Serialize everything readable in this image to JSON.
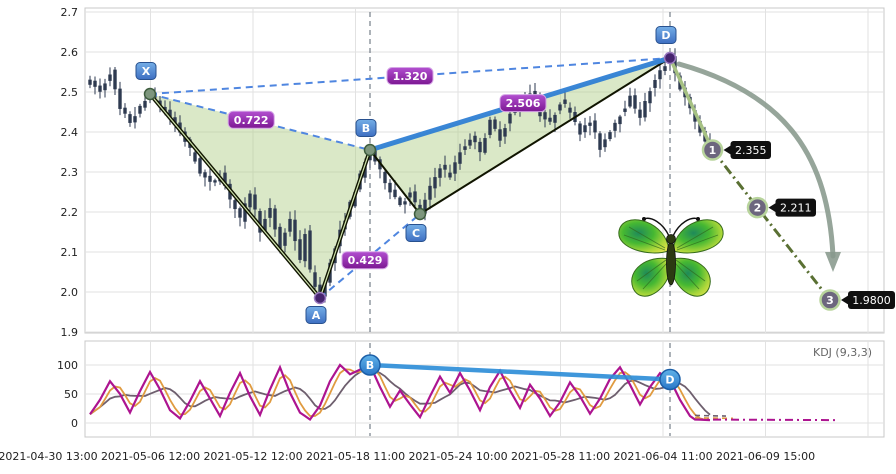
{
  "chart_data": {
    "type": "candlestick",
    "title": "",
    "main_panel": {
      "y_axis": {
        "ticks": [
          "2.7",
          "2.6",
          "2.5",
          "2.4",
          "2.3",
          "2.2",
          "2.1",
          "2.0",
          "1.9"
        ],
        "range": [
          1.9,
          2.7
        ]
      },
      "x_axis": {
        "ticks": [
          "2021-04-30 13:00",
          "2021-05-06 12:00",
          "2021-05-12 12:00",
          "2021-05-18 11:00",
          "2021-05-24 10:00",
          "2021-05-28 11:00",
          "2021-06-04 11:00",
          "2021-06-09 15:00"
        ]
      },
      "price_anchors": [
        [
          0,
          2.525
        ],
        [
          2,
          2.5
        ],
        [
          4,
          2.55
        ],
        [
          6,
          2.455
        ],
        [
          8,
          2.425
        ],
        [
          10,
          2.46
        ],
        [
          12,
          2.495
        ],
        [
          14,
          2.465
        ],
        [
          16,
          2.435
        ],
        [
          18,
          2.4
        ],
        [
          20,
          2.355
        ],
        [
          22,
          2.3
        ],
        [
          24,
          2.27
        ],
        [
          26,
          2.295
        ],
        [
          28,
          2.235
        ],
        [
          30,
          2.18
        ],
        [
          32,
          2.25
        ],
        [
          34,
          2.155
        ],
        [
          36,
          2.205
        ],
        [
          38,
          2.11
        ],
        [
          40,
          2.185
        ],
        [
          42,
          2.075
        ],
        [
          43,
          2.15
        ],
        [
          44,
          2.05
        ],
        [
          46,
          1.985
        ],
        [
          48,
          2.07
        ],
        [
          50,
          2.15
        ],
        [
          52,
          2.22
        ],
        [
          54,
          2.29
        ],
        [
          56,
          2.355
        ],
        [
          58,
          2.3
        ],
        [
          60,
          2.255
        ],
        [
          62,
          2.22
        ],
        [
          64,
          2.245
        ],
        [
          66,
          2.195
        ],
        [
          68,
          2.26
        ],
        [
          70,
          2.315
        ],
        [
          72,
          2.29
        ],
        [
          74,
          2.35
        ],
        [
          76,
          2.385
        ],
        [
          78,
          2.355
        ],
        [
          80,
          2.425
        ],
        [
          82,
          2.385
        ],
        [
          84,
          2.445
        ],
        [
          86,
          2.475
        ],
        [
          88,
          2.5
        ],
        [
          90,
          2.445
        ],
        [
          92,
          2.42
        ],
        [
          94,
          2.475
        ],
        [
          96,
          2.455
        ],
        [
          98,
          2.4
        ],
        [
          100,
          2.425
        ],
        [
          102,
          2.36
        ],
        [
          104,
          2.405
        ],
        [
          106,
          2.445
        ],
        [
          108,
          2.485
        ],
        [
          110,
          2.44
        ],
        [
          112,
          2.505
        ],
        [
          114,
          2.55
        ],
        [
          116,
          2.585
        ],
        [
          118,
          2.51
        ],
        [
          120,
          2.455
        ],
        [
          122,
          2.4
        ],
        [
          124,
          2.345
        ]
      ],
      "harmonic_pattern": {
        "points": [
          {
            "label": "X",
            "idx": 12,
            "price": 2.495,
            "tone": "sage",
            "label_offset": [
              -4,
              -23
            ]
          },
          {
            "label": "A",
            "idx": 46,
            "price": 1.985,
            "tone": "purple",
            "label_offset": [
              -4,
              17
            ]
          },
          {
            "label": "B",
            "idx": 56,
            "price": 2.355,
            "tone": "sage",
            "label_offset": [
              -4,
              -22
            ]
          },
          {
            "label": "C",
            "idx": 66,
            "price": 2.195,
            "tone": "sage",
            "label_offset": [
              -4,
              19
            ]
          },
          {
            "label": "D",
            "idx": 116,
            "price": 2.585,
            "tone": "purple",
            "label_offset": [
              -4,
              -23
            ]
          }
        ],
        "ratio_labels": [
          {
            "text": "0.722",
            "from": "X",
            "to": "B",
            "t": 0.46
          },
          {
            "text": "1.320",
            "from": "X",
            "to": "D",
            "t": 0.5
          },
          {
            "text": "0.429",
            "from": "A",
            "to": "C",
            "t": 0.45
          },
          {
            "text": "2.506",
            "from": "B",
            "to": "D",
            "t": 0.51
          }
        ]
      },
      "targets": [
        {
          "label": "1",
          "idx": 124.5,
          "price": 2.355,
          "tag": "2.355"
        },
        {
          "label": "2",
          "idx": 133.5,
          "price": 2.211,
          "tag": "2.211"
        },
        {
          "label": "3",
          "idx": 148,
          "price": 1.98,
          "tag": "1.9800"
        }
      ]
    },
    "kdj_panel": {
      "indicator_label": "KDJ (9,3,3)",
      "y_axis": {
        "ticks": [
          "100",
          "50",
          "0"
        ],
        "range": [
          0,
          100
        ]
      },
      "j_anchors": [
        [
          0,
          15
        ],
        [
          2,
          40
        ],
        [
          4,
          72
        ],
        [
          6,
          50
        ],
        [
          8,
          18
        ],
        [
          10,
          55
        ],
        [
          12,
          88
        ],
        [
          14,
          58
        ],
        [
          16,
          22
        ],
        [
          18,
          8
        ],
        [
          20,
          38
        ],
        [
          22,
          72
        ],
        [
          24,
          42
        ],
        [
          26,
          12
        ],
        [
          28,
          52
        ],
        [
          30,
          86
        ],
        [
          32,
          46
        ],
        [
          34,
          14
        ],
        [
          36,
          58
        ],
        [
          38,
          96
        ],
        [
          40,
          52
        ],
        [
          42,
          18
        ],
        [
          44,
          6
        ],
        [
          46,
          30
        ],
        [
          48,
          72
        ],
        [
          50,
          100
        ],
        [
          52,
          84
        ],
        [
          54,
          92
        ],
        [
          56,
          100
        ],
        [
          58,
          62
        ],
        [
          60,
          28
        ],
        [
          62,
          56
        ],
        [
          64,
          32
        ],
        [
          66,
          10
        ],
        [
          68,
          46
        ],
        [
          70,
          80
        ],
        [
          72,
          52
        ],
        [
          74,
          86
        ],
        [
          76,
          56
        ],
        [
          78,
          22
        ],
        [
          80,
          62
        ],
        [
          82,
          90
        ],
        [
          84,
          56
        ],
        [
          86,
          26
        ],
        [
          88,
          66
        ],
        [
          90,
          42
        ],
        [
          92,
          12
        ],
        [
          94,
          36
        ],
        [
          96,
          70
        ],
        [
          98,
          46
        ],
        [
          100,
          16
        ],
        [
          102,
          42
        ],
        [
          104,
          76
        ],
        [
          106,
          96
        ],
        [
          108,
          66
        ],
        [
          110,
          32
        ],
        [
          112,
          62
        ],
        [
          114,
          86
        ],
        [
          116,
          75
        ],
        [
          118,
          40
        ],
        [
          120,
          12
        ],
        [
          121,
          6
        ],
        [
          124,
          5
        ]
      ],
      "markers": [
        {
          "label": "B",
          "idx": 56,
          "value": 100
        },
        {
          "label": "D",
          "idx": 116,
          "value": 75
        }
      ]
    }
  },
  "colors": {
    "background": "#ffffff",
    "panel_border": "#c8c8c8",
    "grid": "#e2e2e2",
    "axis_text": "#222222",
    "indicator_text": "#666666",
    "candle": "#2e3a50",
    "pattern_fill": "rgba(173,203,131,0.45)",
    "pattern_edge": "#101400",
    "pattern_edge_inner": "#cfe3ae",
    "dashed_blue": "#4f86e0",
    "trend_blue": "#2f7fd4",
    "marker_dash": "#5a6472",
    "ratio_box_top": "#b24fd0",
    "ratio_box_bottom": "#7c1892",
    "ratio_box_border": "#d5a6e6",
    "point_box_top": "#74aee6",
    "point_box_bottom": "#3e6fc2",
    "point_box_border": "#28518f",
    "point_sage": "#7d967d",
    "point_purple": "#46246e",
    "target_circle": "#6d667e",
    "target_ring": "#b8d49c",
    "target_tag_bg": "#101010",
    "projection_solid": "#a6c183",
    "projection_dashdot": "#5a7033",
    "arrow_gray": "#87988c",
    "kdj_j": "#ad1490",
    "kdj_k": "#e09b40",
    "kdj_d": "#6e5f6e",
    "kdj_link_blue": "#2f8fd8"
  }
}
